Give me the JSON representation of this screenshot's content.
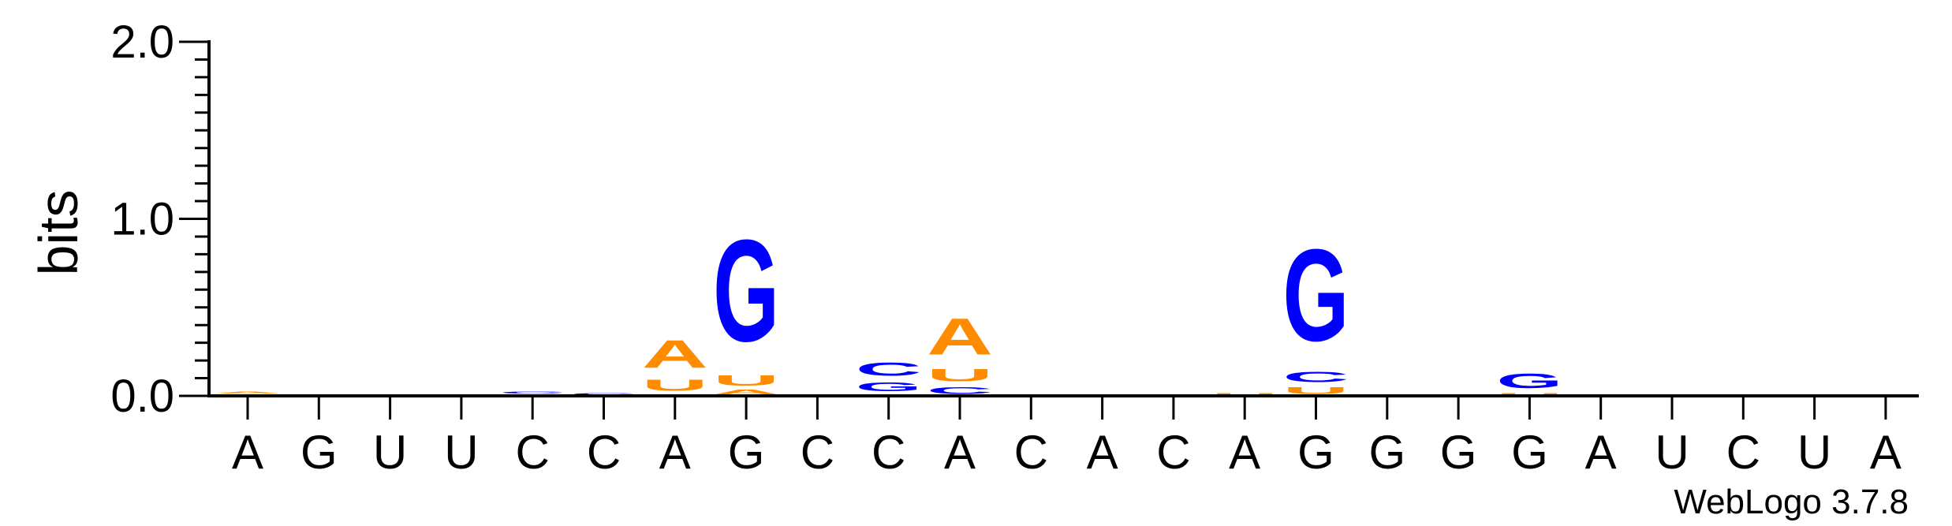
{
  "chart_data": {
    "type": "sequence-logo",
    "ylabel": "bits",
    "ylim": [
      0,
      2.0
    ],
    "yticks": [
      "0.0",
      "1.0",
      "2.0"
    ],
    "xlabel": "",
    "positions": [
      "A",
      "G",
      "U",
      "U",
      "C",
      "C",
      "A",
      "G",
      "C",
      "C",
      "A",
      "C",
      "A",
      "C",
      "A",
      "G",
      "G",
      "G",
      "G",
      "A",
      "U",
      "C",
      "U",
      "A"
    ],
    "colors": {
      "A": "#ff8c00",
      "U": "#ff8c00",
      "G": "#0000ff",
      "C": "#0000ff"
    },
    "stacks": [
      [
        {
          "letter": "C",
          "bits": 0.01
        },
        {
          "letter": "A",
          "bits": 0.02
        }
      ],
      [],
      [],
      [],
      [
        {
          "letter": "U",
          "bits": 0.01
        },
        {
          "letter": "C",
          "bits": 0.02
        }
      ],
      [
        {
          "letter": "C",
          "bits": 0.02
        }
      ],
      [
        {
          "letter": "C",
          "bits": 0.01
        },
        {
          "letter": "U",
          "bits": 0.1
        },
        {
          "letter": "A",
          "bits": 0.25
        }
      ],
      [
        {
          "letter": "A",
          "bits": 0.04
        },
        {
          "letter": "U",
          "bits": 0.09
        },
        {
          "letter": "G",
          "bits": 0.92
        }
      ],
      [],
      [
        {
          "letter": "U",
          "bits": 0.01
        },
        {
          "letter": "G",
          "bits": 0.08
        },
        {
          "letter": "C",
          "bits": 0.12
        }
      ],
      [
        {
          "letter": "C",
          "bits": 0.06
        },
        {
          "letter": "U",
          "bits": 0.11
        },
        {
          "letter": "A",
          "bits": 0.33
        }
      ],
      [],
      [
        {
          "letter": "U",
          "bits": 0.01
        }
      ],
      [
        {
          "letter": "U",
          "bits": 0.01
        }
      ],
      [
        {
          "letter": "U",
          "bits": 0.02
        }
      ],
      [
        {
          "letter": "U",
          "bits": 0.06
        },
        {
          "letter": "C",
          "bits": 0.09
        },
        {
          "letter": "G",
          "bits": 0.83
        }
      ],
      [],
      [],
      [
        {
          "letter": "U",
          "bits": 0.02
        },
        {
          "letter": "G",
          "bits": 0.13
        }
      ],
      [],
      [
        {
          "letter": "C",
          "bits": 0.005
        }
      ],
      [],
      [],
      []
    ],
    "credit": "WebLogo 3.7.8"
  }
}
